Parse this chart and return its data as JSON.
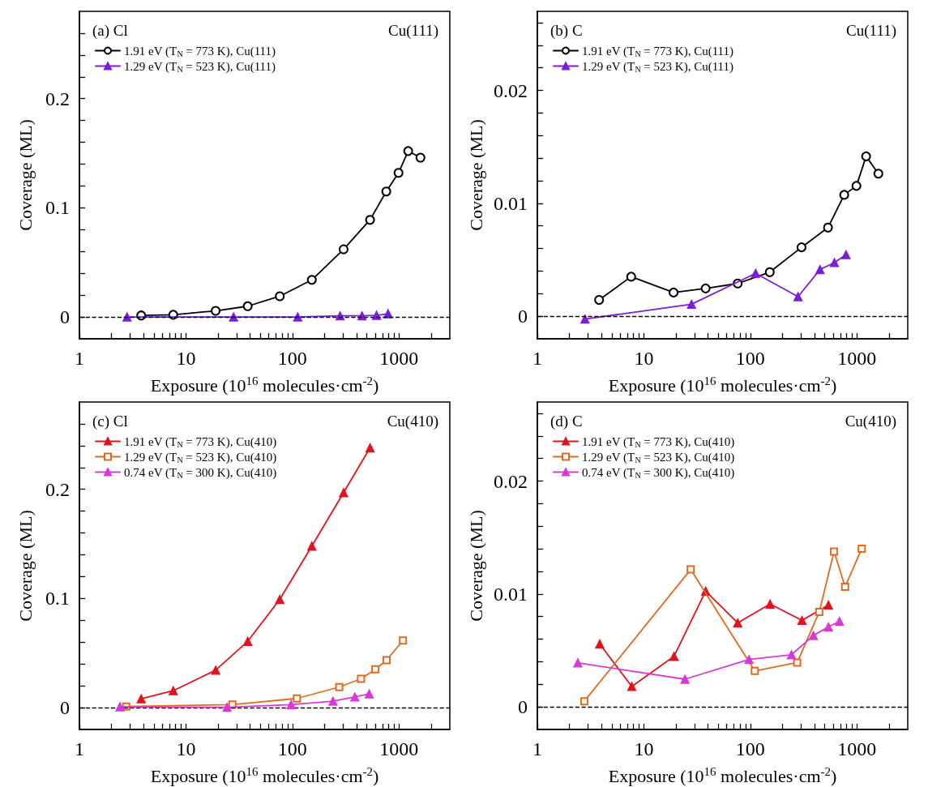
{
  "chart_data": [
    {
      "type": "line",
      "xlabel": "Exposure (10$^{16}$ molecules·cm$^{-2}$)",
      "ylabel": "Coverage (ML)",
      "annotations": [
        "(a) Cl",
        "Cu(111)"
      ],
      "log": "x",
      "legend": "top left",
      "xlim": [
        1,
        3000
      ],
      "ylim": [
        -0.02,
        0.28
      ],
      "xticks": [
        1,
        {
          "value": 2,
          "label": null
        },
        {
          "value": 3,
          "label": null
        },
        {
          "value": 4,
          "label": null
        },
        {
          "value": 5,
          "label": null
        },
        {
          "value": 6,
          "label": null
        },
        {
          "value": 7,
          "label": null
        },
        {
          "value": 8,
          "label": null
        },
        {
          "value": 9,
          "label": null
        },
        10,
        {
          "value": 20,
          "label": null
        },
        {
          "value": 30,
          "label": null
        },
        {
          "value": 40,
          "label": null
        },
        {
          "value": 50,
          "label": null
        },
        {
          "value": 60,
          "label": null
        },
        {
          "value": 70,
          "label": null
        },
        {
          "value": 80,
          "label": null
        },
        {
          "value": 90,
          "label": null
        },
        100,
        {
          "value": 200,
          "label": null
        },
        {
          "value": 300,
          "label": null
        },
        {
          "value": 400,
          "label": null
        },
        {
          "value": 500,
          "label": null
        },
        {
          "value": 600,
          "label": null
        },
        {
          "value": 700,
          "label": null
        },
        {
          "value": 800,
          "label": null
        },
        {
          "value": 900,
          "label": null
        },
        1000,
        {
          "value": 2000,
          "label": null
        }
      ],
      "yticks": [
        0,
        {
          "value": 0.02,
          "label": null
        },
        {
          "value": 0.04,
          "label": null
        },
        {
          "value": 0.06,
          "label": null
        },
        {
          "value": 0.08,
          "label": null
        },
        0.1,
        {
          "value": 0.12,
          "label": null
        },
        {
          "value": 0.14,
          "label": null
        },
        {
          "value": 0.16,
          "label": null
        },
        {
          "value": 0.18,
          "label": null
        },
        0.2,
        {
          "value": 0.22,
          "label": null
        },
        {
          "value": 0.24,
          "label": null
        },
        {
          "value": 0.26,
          "label": null
        }
      ],
      "ref_lines": [
        {
          "axis": "y",
          "value": 0,
          "label": null,
          "color": "#000000",
          "line_style": "dashed"
        }
      ],
      "series": [
        {
          "name": "1.91 eV (T$_{N}$ = 773 K), Cu(111)",
          "color": "#000000",
          "marker": "circle",
          "x": [
            3.8,
            7.6,
            19,
            38,
            76,
            152,
            302,
            535,
            760,
            990,
            1220,
            1590
          ],
          "values": [
            0.0014,
            0.002,
            0.0056,
            0.0099,
            0.019,
            0.034,
            0.062,
            0.089,
            0.115,
            0.132,
            0.152,
            0.146
          ]
        },
        {
          "name": "1.29 eV (T$_{N}$ = 523 K), Cu(111)",
          "color": "#7a1fd6",
          "marker": "triangle",
          "x": [
            2.8,
            28,
            112,
            280,
            450,
            615,
            790
          ],
          "values": [
            0,
            0,
            0,
            0.001,
            0.001,
            0.0015,
            0.003
          ]
        }
      ]
    },
    {
      "type": "line",
      "xlabel": "Exposure (10$^{16}$ molecules·cm$^{-2}$)",
      "ylabel": "Coverage (ML)",
      "annotations": [
        "(b) C",
        "Cu(111)"
      ],
      "log": "x",
      "legend": "top left",
      "xlim": [
        1,
        3000
      ],
      "ylim": [
        -0.002,
        0.027
      ],
      "xticks": [
        1,
        {
          "value": 2,
          "label": null
        },
        {
          "value": 3,
          "label": null
        },
        {
          "value": 4,
          "label": null
        },
        {
          "value": 5,
          "label": null
        },
        {
          "value": 6,
          "label": null
        },
        {
          "value": 7,
          "label": null
        },
        {
          "value": 8,
          "label": null
        },
        {
          "value": 9,
          "label": null
        },
        10,
        {
          "value": 20,
          "label": null
        },
        {
          "value": 30,
          "label": null
        },
        {
          "value": 40,
          "label": null
        },
        {
          "value": 50,
          "label": null
        },
        {
          "value": 60,
          "label": null
        },
        {
          "value": 70,
          "label": null
        },
        {
          "value": 80,
          "label": null
        },
        {
          "value": 90,
          "label": null
        },
        100,
        {
          "value": 200,
          "label": null
        },
        {
          "value": 300,
          "label": null
        },
        {
          "value": 400,
          "label": null
        },
        {
          "value": 500,
          "label": null
        },
        {
          "value": 600,
          "label": null
        },
        {
          "value": 700,
          "label": null
        },
        {
          "value": 800,
          "label": null
        },
        {
          "value": 900,
          "label": null
        },
        1000,
        {
          "value": 2000,
          "label": null
        }
      ],
      "yticks": [
        0,
        {
          "value": 0.002,
          "label": null
        },
        {
          "value": 0.004,
          "label": null
        },
        {
          "value": 0.006,
          "label": null
        },
        {
          "value": 0.008,
          "label": null
        },
        0.01,
        {
          "value": 0.012,
          "label": null
        },
        {
          "value": 0.014,
          "label": null
        },
        {
          "value": 0.016,
          "label": null
        },
        {
          "value": 0.018,
          "label": null
        },
        0.02,
        {
          "value": 0.022,
          "label": null
        },
        {
          "value": 0.024,
          "label": null
        },
        {
          "value": 0.026,
          "label": null
        }
      ],
      "ref_lines": [
        {
          "axis": "y",
          "value": 0,
          "label": null,
          "color": "#000000",
          "line_style": "dashed"
        }
      ],
      "series": [
        {
          "name": "1.91 eV (T$_{N}$ = 773 K), Cu(111)",
          "color": "#000000",
          "marker": "circle",
          "x": [
            3.8,
            7.6,
            19,
            38,
            76,
            152,
            302,
            535,
            760,
            990,
            1220,
            1590
          ],
          "values": [
            0.00145,
            0.0035,
            0.0021,
            0.00246,
            0.0029,
            0.0039,
            0.0061,
            0.00785,
            0.01075,
            0.01154,
            0.01416,
            0.01263
          ]
        },
        {
          "name": "1.29 eV (T$_{N}$ = 523 K), Cu(111)",
          "color": "#7a1fd6",
          "marker": "triangle",
          "x": [
            2.8,
            28,
            112,
            280,
            450,
            615,
            790
          ],
          "values": [
            -0.00025,
            0.00106,
            0.0038,
            0.00173,
            0.00413,
            0.00475,
            0.00545
          ]
        }
      ]
    },
    {
      "type": "line",
      "xlabel": "Exposure (10$^{16}$ molecules·cm$^{-2}$)",
      "ylabel": "Coverage (ML)",
      "annotations": [
        "(c) Cl",
        "Cu(410)"
      ],
      "log": "x",
      "legend": "top left",
      "xlim": [
        1,
        3000
      ],
      "ylim": [
        -0.02,
        0.28
      ],
      "xticks": [
        1,
        {
          "value": 2,
          "label": null
        },
        {
          "value": 3,
          "label": null
        },
        {
          "value": 4,
          "label": null
        },
        {
          "value": 5,
          "label": null
        },
        {
          "value": 6,
          "label": null
        },
        {
          "value": 7,
          "label": null
        },
        {
          "value": 8,
          "label": null
        },
        {
          "value": 9,
          "label": null
        },
        10,
        {
          "value": 20,
          "label": null
        },
        {
          "value": 30,
          "label": null
        },
        {
          "value": 40,
          "label": null
        },
        {
          "value": 50,
          "label": null
        },
        {
          "value": 60,
          "label": null
        },
        {
          "value": 70,
          "label": null
        },
        {
          "value": 80,
          "label": null
        },
        {
          "value": 90,
          "label": null
        },
        100,
        {
          "value": 200,
          "label": null
        },
        {
          "value": 300,
          "label": null
        },
        {
          "value": 400,
          "label": null
        },
        {
          "value": 500,
          "label": null
        },
        {
          "value": 600,
          "label": null
        },
        {
          "value": 700,
          "label": null
        },
        {
          "value": 800,
          "label": null
        },
        {
          "value": 900,
          "label": null
        },
        1000,
        {
          "value": 2000,
          "label": null
        }
      ],
      "yticks": [
        0,
        {
          "value": 0.02,
          "label": null
        },
        {
          "value": 0.04,
          "label": null
        },
        {
          "value": 0.06,
          "label": null
        },
        {
          "value": 0.08,
          "label": null
        },
        0.1,
        {
          "value": 0.12,
          "label": null
        },
        {
          "value": 0.14,
          "label": null
        },
        {
          "value": 0.16,
          "label": null
        },
        {
          "value": 0.18,
          "label": null
        },
        0.2,
        {
          "value": 0.22,
          "label": null
        },
        {
          "value": 0.24,
          "label": null
        },
        {
          "value": 0.26,
          "label": null
        }
      ],
      "ref_lines": [
        {
          "axis": "y",
          "value": 0,
          "label": null,
          "color": "#000000",
          "line_style": "dashed"
        }
      ],
      "series": [
        {
          "name": "1.91 eV (T$_{N}$ = 773 K), Cu(410)",
          "color": "#e0141e",
          "marker": "triangle",
          "x": [
            3.8,
            7.6,
            19,
            38,
            76,
            152,
            302,
            535
          ],
          "values": [
            0.0081,
            0.0155,
            0.0343,
            0.0607,
            0.0992,
            0.148,
            0.197,
            0.238
          ]
        },
        {
          "name": "1.29 eV (T$_{N}$ = 523 K), Cu(410)",
          "color": "#e06a1e",
          "marker": "square",
          "x": [
            2.75,
            27.3,
            110,
            275,
            440,
            600,
            765,
            1090
          ],
          "values": [
            0.001,
            0.0028,
            0.0084,
            0.0188,
            0.0264,
            0.0351,
            0.0435,
            0.0615
          ]
        },
        {
          "name": "0.74 eV (T$_{N}$ = 300 K), Cu(410)",
          "color": "#d63ad6",
          "marker": "triangle",
          "x": [
            2.4,
            24.3,
            97,
            240,
            385,
            525
          ],
          "values": [
            0.0008,
            0.0003,
            0.0028,
            0.0059,
            0.0098,
            0.0126
          ]
        }
      ]
    },
    {
      "type": "line",
      "xlabel": "Exposure (10$^{16}$ molecules·cm$^{-2}$)",
      "ylabel": "Coverage (ML)",
      "annotations": [
        "(d) C",
        "Cu(410)"
      ],
      "log": "x",
      "legend": "top left",
      "xlim": [
        1,
        3000
      ],
      "ylim": [
        -0.002,
        0.027
      ],
      "xticks": [
        1,
        {
          "value": 2,
          "label": null
        },
        {
          "value": 3,
          "label": null
        },
        {
          "value": 4,
          "label": null
        },
        {
          "value": 5,
          "label": null
        },
        {
          "value": 6,
          "label": null
        },
        {
          "value": 7,
          "label": null
        },
        {
          "value": 8,
          "label": null
        },
        {
          "value": 9,
          "label": null
        },
        10,
        {
          "value": 20,
          "label": null
        },
        {
          "value": 30,
          "label": null
        },
        {
          "value": 40,
          "label": null
        },
        {
          "value": 50,
          "label": null
        },
        {
          "value": 60,
          "label": null
        },
        {
          "value": 70,
          "label": null
        },
        {
          "value": 80,
          "label": null
        },
        {
          "value": 90,
          "label": null
        },
        100,
        {
          "value": 200,
          "label": null
        },
        {
          "value": 300,
          "label": null
        },
        {
          "value": 400,
          "label": null
        },
        {
          "value": 500,
          "label": null
        },
        {
          "value": 600,
          "label": null
        },
        {
          "value": 700,
          "label": null
        },
        {
          "value": 800,
          "label": null
        },
        {
          "value": 900,
          "label": null
        },
        1000,
        {
          "value": 2000,
          "label": null
        }
      ],
      "yticks": [
        0,
        {
          "value": 0.002,
          "label": null
        },
        {
          "value": 0.004,
          "label": null
        },
        {
          "value": 0.006,
          "label": null
        },
        {
          "value": 0.008,
          "label": null
        },
        0.01,
        {
          "value": 0.012,
          "label": null
        },
        {
          "value": 0.014,
          "label": null
        },
        {
          "value": 0.016,
          "label": null
        },
        {
          "value": 0.018,
          "label": null
        },
        0.02,
        {
          "value": 0.022,
          "label": null
        },
        {
          "value": 0.024,
          "label": null
        },
        {
          "value": 0.026,
          "label": null
        }
      ],
      "ref_lines": [
        {
          "axis": "y",
          "value": 0,
          "label": null,
          "color": "#000000",
          "line_style": "dashed"
        }
      ],
      "series": [
        {
          "name": "1.91 eV (T$_{N}$ = 773 K), Cu(410)",
          "color": "#e0141e",
          "marker": "triangle",
          "x": [
            3.85,
            7.7,
            19.2,
            38,
            76,
            153,
            305,
            540
          ],
          "values": [
            0.00557,
            0.00181,
            0.00448,
            0.01025,
            0.00744,
            0.00911,
            0.00766,
            0.00902
          ]
        },
        {
          "name": "1.29 eV (T$_{N}$ = 523 K), Cu(410)",
          "color": "#e06a1e",
          "marker": "square",
          "x": [
            2.76,
            27.5,
            110,
            275,
            443,
            610,
            775,
            1110
          ],
          "values": [
            0.0005,
            0.01217,
            0.00318,
            0.00393,
            0.00841,
            0.01376,
            0.01064,
            0.01401
          ]
        },
        {
          "name": "0.74 eV (T$_{N}$ = 300 K), Cu(410)",
          "color": "#d63ad6",
          "marker": "triangle",
          "x": [
            2.4,
            24.3,
            97,
            243,
            390,
            540,
            685
          ],
          "values": [
            0.0039,
            0.00245,
            0.0042,
            0.00462,
            0.00632,
            0.00708,
            0.00758
          ]
        }
      ]
    }
  ]
}
